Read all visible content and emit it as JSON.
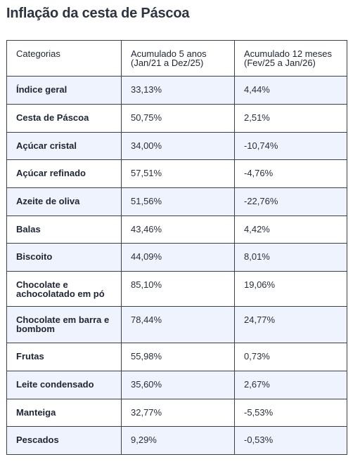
{
  "title": "Inflação da cesta de Páscoa",
  "table": {
    "headers": {
      "categoria": "Categorias",
      "acumulado_5_anos": "Acumulado 5 anos (Jan/21 a Dez/25)",
      "acumulado_12_meses": "Acumulado 12 meses (Fev/25 a Jan/26)"
    },
    "rows": [
      {
        "categoria": "Índice geral",
        "cinco_anos": "33,13%",
        "doze_meses": "4,44%"
      },
      {
        "categoria": "Cesta de Páscoa",
        "cinco_anos": "50,75%",
        "doze_meses": "2,51%"
      },
      {
        "categoria": "Açúcar cristal",
        "cinco_anos": "34,00%",
        "doze_meses": "-10,74%"
      },
      {
        "categoria": "Açúcar refinado",
        "cinco_anos": "57,51%",
        "doze_meses": "-4,76%"
      },
      {
        "categoria": "Azeite de oliva",
        "cinco_anos": "51,56%",
        "doze_meses": "-22,76%"
      },
      {
        "categoria": "Balas",
        "cinco_anos": "43,46%",
        "doze_meses": "4,42%"
      },
      {
        "categoria": "Biscoito",
        "cinco_anos": "44,09%",
        "doze_meses": "8,01%"
      },
      {
        "categoria": "Chocolate e achocolatado em pó",
        "cinco_anos": "85,10%",
        "doze_meses": "19,06%"
      },
      {
        "categoria": "Chocolate em barra e bombom",
        "cinco_anos": "78,44%",
        "doze_meses": "24,77%"
      },
      {
        "categoria": "Frutas",
        "cinco_anos": "55,98%",
        "doze_meses": "0,73%"
      },
      {
        "categoria": "Leite condensado",
        "cinco_anos": "35,60%",
        "doze_meses": "2,67%"
      },
      {
        "categoria": "Manteiga",
        "cinco_anos": "32,77%",
        "doze_meses": "-5,53%"
      },
      {
        "categoria": "Pescados",
        "cinco_anos": "9,29%",
        "doze_meses": "-0,53%"
      }
    ]
  }
}
